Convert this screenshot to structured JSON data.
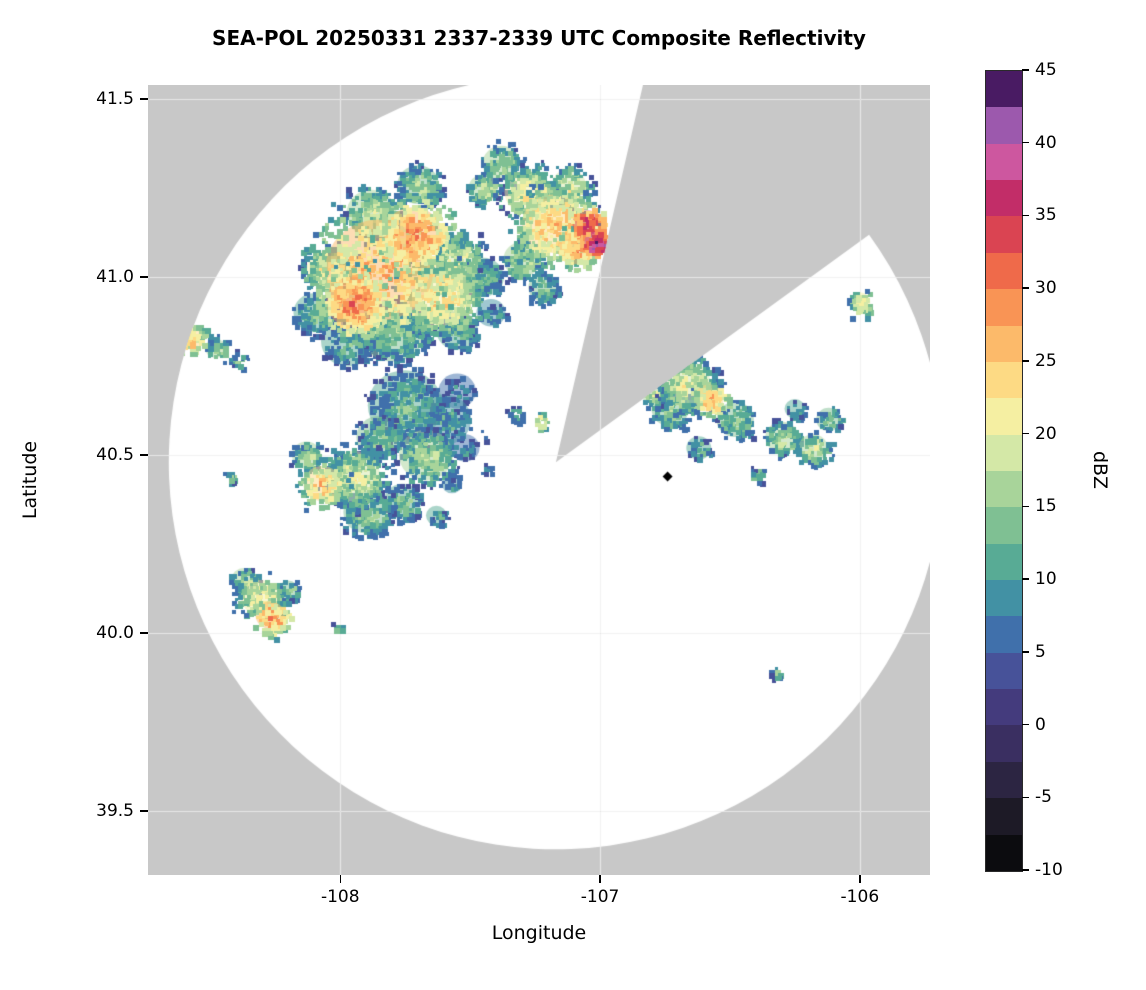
{
  "chart_data": {
    "type": "heatmap",
    "title": "SEA-POL 20250331 2337-2339 UTC Composite Reflectivity",
    "xlabel": "Longitude",
    "ylabel": "Latitude",
    "xlim": [
      -108.74,
      -105.73
    ],
    "ylim": [
      39.32,
      41.54
    ],
    "x_ticks": [
      -108,
      -107,
      -106
    ],
    "x_tick_labels": [
      "-108",
      "-107",
      "-106"
    ],
    "y_ticks": [
      39.5,
      40.0,
      40.5,
      41.0,
      41.5
    ],
    "y_tick_labels": [
      "39.5",
      "40.0",
      "40.5",
      "41.0",
      "41.5"
    ],
    "grid": true,
    "background_color": "#c8c8c8",
    "coverage_color": "#ffffff",
    "radar": {
      "center_lon": -107.17,
      "center_lat": 40.48,
      "radius_deg_lon": 1.49,
      "missing_sector_azimuth_deg": [
        13,
        54
      ]
    },
    "marker": {
      "shape": "diamond",
      "lon": -106.74,
      "lat": 40.44,
      "color": "#000000"
    },
    "colorbar": {
      "label": "dBZ",
      "min": -10,
      "max": 45,
      "tick_step": 5,
      "ticks": [
        45,
        40,
        35,
        30,
        25,
        20,
        15,
        10,
        5,
        0,
        -5,
        -10
      ],
      "segments": [
        {
          "from": -10,
          "to": -7.5,
          "color": "#0c0c0f"
        },
        {
          "from": -7.5,
          "to": -5,
          "color": "#1d1a26"
        },
        {
          "from": -5,
          "to": -2.5,
          "color": "#2c2542"
        },
        {
          "from": -2.5,
          "to": 0,
          "color": "#3a2f61"
        },
        {
          "from": 0,
          "to": 2.5,
          "color": "#443b7d"
        },
        {
          "from": 2.5,
          "to": 5,
          "color": "#475299"
        },
        {
          "from": 5,
          "to": 7.5,
          "color": "#4070ab"
        },
        {
          "from": 7.5,
          "to": 10,
          "color": "#4291a4"
        },
        {
          "from": 10,
          "to": 12.5,
          "color": "#58ab95"
        },
        {
          "from": 12.5,
          "to": 15,
          "color": "#7fc093"
        },
        {
          "from": 15,
          "to": 17.5,
          "color": "#a8d49a"
        },
        {
          "from": 17.5,
          "to": 20,
          "color": "#d4e8a7"
        },
        {
          "from": 20,
          "to": 22.5,
          "color": "#f5efa2"
        },
        {
          "from": 22.5,
          "to": 25,
          "color": "#fdda84"
        },
        {
          "from": 25,
          "to": 27.5,
          "color": "#fcba6a"
        },
        {
          "from": 27.5,
          "to": 30,
          "color": "#f99455"
        },
        {
          "from": 30,
          "to": 32.5,
          "color": "#ef6a4a"
        },
        {
          "from": 32.5,
          "to": 35,
          "color": "#da4452"
        },
        {
          "from": 35,
          "to": 37.5,
          "color": "#c22d68"
        },
        {
          "from": 37.5,
          "to": 40,
          "color": "#cd579f"
        },
        {
          "from": 40,
          "to": 42.5,
          "color": "#9c59ad"
        },
        {
          "from": 42.5,
          "to": 45,
          "color": "#491b63"
        }
      ]
    },
    "echo_format": [
      "lon",
      "lat",
      "radius_deg",
      "dbz"
    ],
    "echoes": [
      [
        -107.85,
        41.02,
        0.26,
        27
      ],
      [
        -107.72,
        41.12,
        0.14,
        29
      ],
      [
        -107.95,
        40.93,
        0.13,
        30
      ],
      [
        -107.62,
        40.95,
        0.16,
        24
      ],
      [
        -108.05,
        41.02,
        0.1,
        22
      ],
      [
        -107.55,
        41.05,
        0.11,
        20
      ],
      [
        -107.88,
        41.18,
        0.12,
        19
      ],
      [
        -107.7,
        41.26,
        0.1,
        16
      ],
      [
        -108.1,
        40.9,
        0.1,
        14
      ],
      [
        -107.97,
        40.82,
        0.13,
        12
      ],
      [
        -107.8,
        40.85,
        0.16,
        15
      ],
      [
        -107.55,
        40.85,
        0.1,
        13
      ],
      [
        -107.45,
        41.0,
        0.1,
        13
      ],
      [
        -107.42,
        40.9,
        0.07,
        11
      ],
      [
        -107.18,
        41.15,
        0.15,
        26
      ],
      [
        -107.05,
        41.15,
        0.07,
        36
      ],
      [
        -107.02,
        41.1,
        0.05,
        40
      ],
      [
        -107.1,
        41.08,
        0.08,
        28
      ],
      [
        -107.28,
        41.24,
        0.11,
        22
      ],
      [
        -107.38,
        41.32,
        0.09,
        17
      ],
      [
        -107.3,
        41.05,
        0.09,
        18
      ],
      [
        -107.22,
        40.97,
        0.07,
        15
      ],
      [
        -107.45,
        41.25,
        0.07,
        19
      ],
      [
        -107.12,
        41.26,
        0.08,
        21
      ],
      [
        -107.75,
        40.64,
        0.18,
        13
      ],
      [
        -107.6,
        40.6,
        0.13,
        11
      ],
      [
        -107.55,
        40.68,
        0.09,
        9
      ],
      [
        -107.85,
        40.55,
        0.11,
        15
      ],
      [
        -107.67,
        40.5,
        0.13,
        17
      ],
      [
        -107.52,
        40.52,
        0.07,
        8
      ],
      [
        -107.45,
        40.56,
        0.04,
        6
      ],
      [
        -107.44,
        40.46,
        0.04,
        9
      ],
      [
        -107.33,
        40.62,
        0.04,
        12
      ],
      [
        -107.23,
        40.6,
        0.03,
        24
      ],
      [
        -107.95,
        40.44,
        0.13,
        20
      ],
      [
        -108.07,
        40.42,
        0.09,
        25
      ],
      [
        -107.9,
        40.34,
        0.11,
        16
      ],
      [
        -107.76,
        40.37,
        0.09,
        14
      ],
      [
        -108.13,
        40.5,
        0.07,
        17
      ],
      [
        -107.63,
        40.33,
        0.05,
        13
      ],
      [
        -107.57,
        40.42,
        0.05,
        10
      ],
      [
        -108.31,
        40.1,
        0.09,
        22
      ],
      [
        -108.27,
        40.05,
        0.07,
        28
      ],
      [
        -108.37,
        40.15,
        0.06,
        17
      ],
      [
        -108.2,
        40.12,
        0.05,
        15
      ],
      [
        -108.02,
        40.02,
        0.03,
        14
      ],
      [
        -108.58,
        40.83,
        0.06,
        26
      ],
      [
        -108.48,
        40.8,
        0.05,
        18
      ],
      [
        -108.4,
        40.77,
        0.04,
        15
      ],
      [
        -108.43,
        40.44,
        0.03,
        15
      ],
      [
        -106.67,
        40.7,
        0.12,
        20
      ],
      [
        -106.58,
        40.66,
        0.07,
        26
      ],
      [
        -106.73,
        40.63,
        0.09,
        16
      ],
      [
        -106.8,
        40.68,
        0.06,
        18
      ],
      [
        -106.48,
        40.6,
        0.09,
        15
      ],
      [
        -106.62,
        40.52,
        0.06,
        12
      ],
      [
        -106.3,
        40.55,
        0.08,
        17
      ],
      [
        -106.18,
        40.52,
        0.07,
        19
      ],
      [
        -106.12,
        40.6,
        0.06,
        15
      ],
      [
        -106.25,
        40.63,
        0.05,
        13
      ],
      [
        -106.4,
        40.45,
        0.04,
        13
      ],
      [
        -106.0,
        40.93,
        0.05,
        23
      ],
      [
        -106.33,
        39.89,
        0.03,
        15
      ]
    ]
  }
}
